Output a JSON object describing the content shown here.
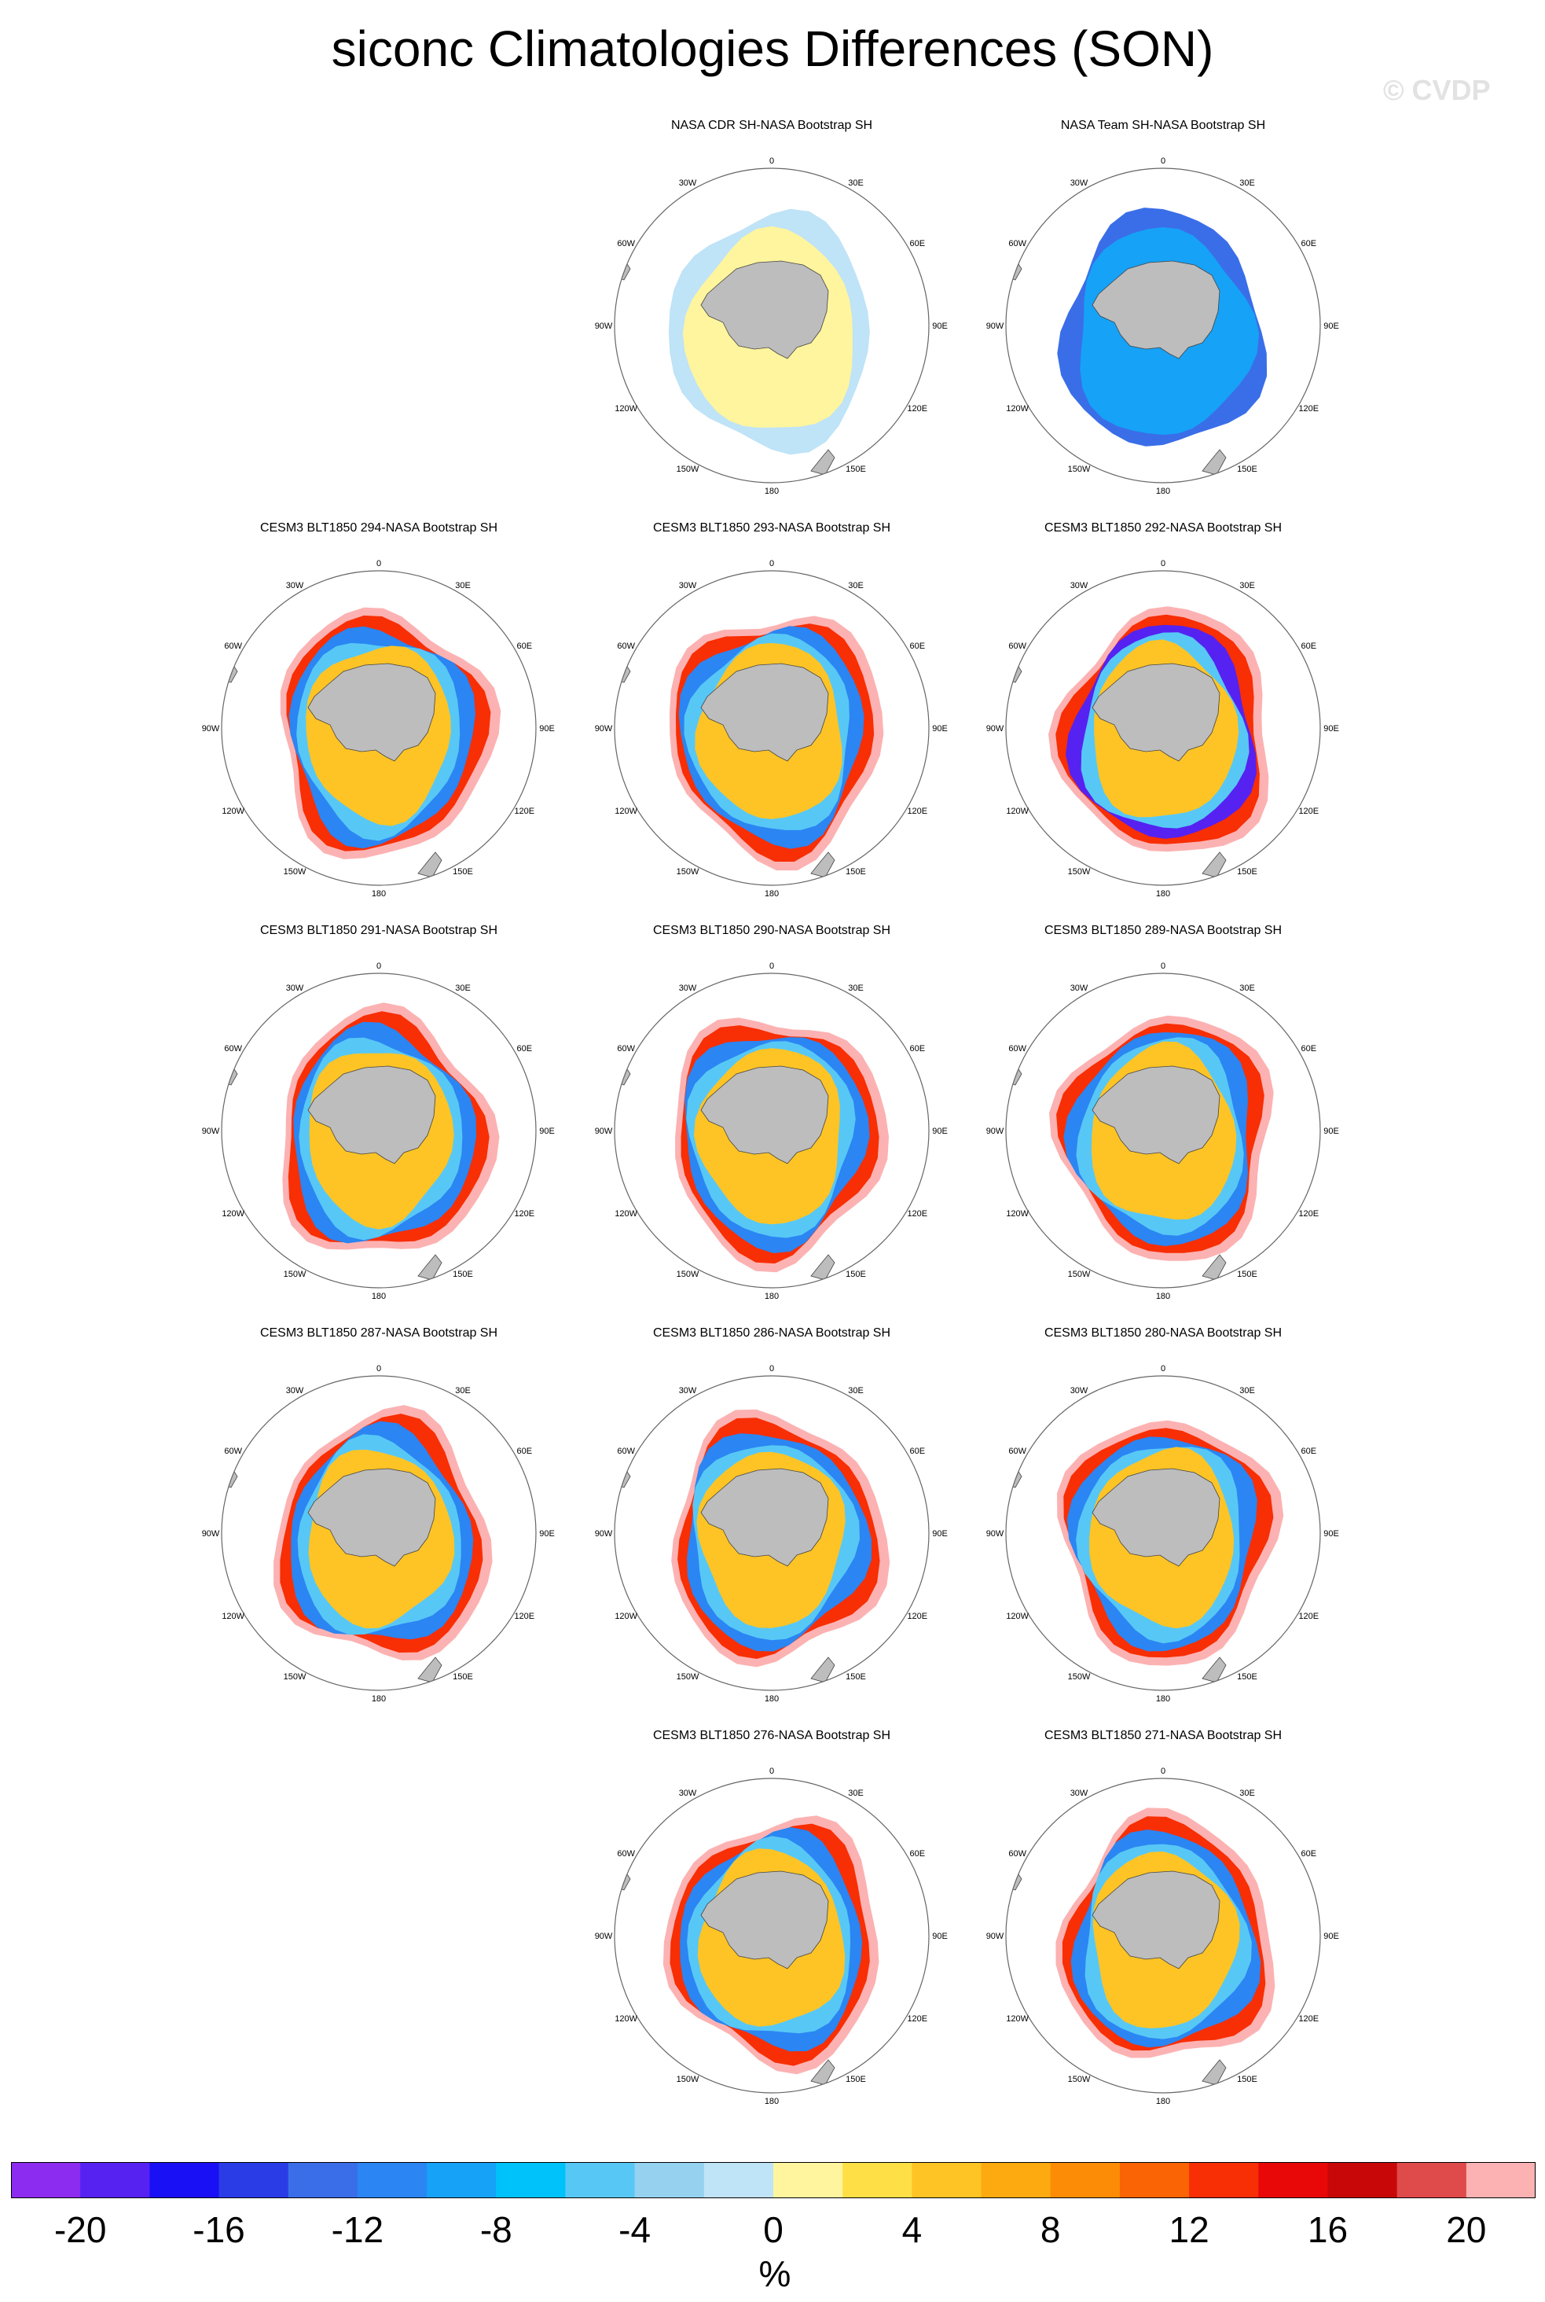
{
  "title": "siconc Climatologies Differences (SON)",
  "watermark": "© CVDP",
  "lon_labels": [
    "0",
    "30E",
    "60E",
    "90E",
    "120E",
    "150E",
    "180",
    "150W",
    "120W",
    "90W",
    "60W",
    "30W"
  ],
  "panels": [
    {
      "title": "NASA CDR SH-NASA Bootstrap SH",
      "style": "cdr"
    },
    {
      "title": "NASA Team SH-NASA Bootstrap SH",
      "style": "team"
    },
    {
      "title": "CESM3 BLT1850 294-NASA Bootstrap SH",
      "style": "model"
    },
    {
      "title": "CESM3 BLT1850 293-NASA Bootstrap SH",
      "style": "model"
    },
    {
      "title": "CESM3 BLT1850 292-NASA Bootstrap SH",
      "style": "violet"
    },
    {
      "title": "CESM3 BLT1850 291-NASA Bootstrap SH",
      "style": "model"
    },
    {
      "title": "CESM3 BLT1850 290-NASA Bootstrap SH",
      "style": "model"
    },
    {
      "title": "CESM3 BLT1850 289-NASA Bootstrap SH",
      "style": "model"
    },
    {
      "title": "CESM3 BLT1850 287-NASA Bootstrap SH",
      "style": "model"
    },
    {
      "title": "CESM3 BLT1850 286-NASA Bootstrap SH",
      "style": "model"
    },
    {
      "title": "CESM3 BLT1850 280-NASA Bootstrap SH",
      "style": "model"
    },
    {
      "title": "CESM3 BLT1850 276-NASA Bootstrap SH",
      "style": "model"
    },
    {
      "title": "CESM3 BLT1850 271-NASA Bootstrap SH",
      "style": "model"
    }
  ],
  "colorbar": {
    "colors": [
      "#8c2cf0",
      "#5522f2",
      "#1a10f5",
      "#2a3ce6",
      "#3a6ee8",
      "#2b85f2",
      "#16a2f7",
      "#00c2fa",
      "#57c8f6",
      "#96d2f0",
      "#bfe3f7",
      "#fff59e",
      "#fedf45",
      "#fec425",
      "#fdaa10",
      "#fc8c06",
      "#fa6404",
      "#f82e04",
      "#e80808",
      "#c80808",
      "#df4a4a",
      "#fcb2b2"
    ],
    "ticks": [
      "-20",
      "-16",
      "-12",
      "-8",
      "-4",
      "0",
      "4",
      "8",
      "12",
      "16",
      "20"
    ],
    "unit": "%"
  }
}
